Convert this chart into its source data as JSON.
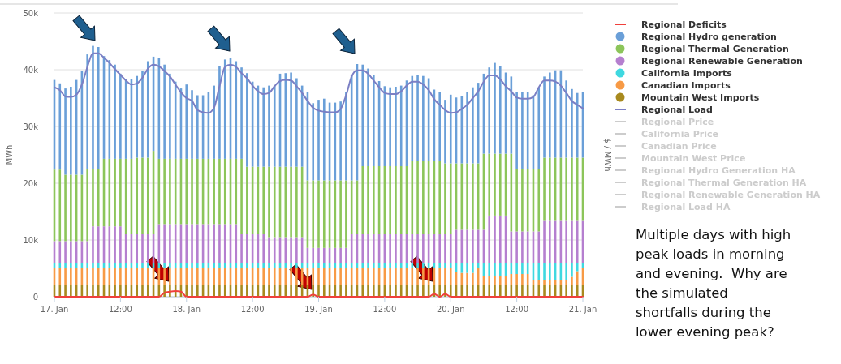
{
  "chart_data": {
    "type": "bar",
    "stacked": true,
    "ylabel": "MWh",
    "y2label": "$ / MWh",
    "grid": "y",
    "legend": "right",
    "xlim": [
      "--01-17T00:00",
      "--01-21T00:00"
    ],
    "xticks": [
      {
        "value": "--01-17T00:00",
        "label": "17. Jan"
      },
      {
        "value": "--01-17T12:00",
        "label": "12:00"
      },
      {
        "value": "--01-18T00:00",
        "label": "18. Jan"
      },
      {
        "value": "--01-18T12:00",
        "label": "12:00"
      },
      {
        "value": "--01-19T00:00",
        "label": "19. Jan"
      },
      {
        "value": "--01-19T12:00",
        "label": "12:00"
      },
      {
        "value": "--01-20T00:00",
        "label": "20. Jan"
      },
      {
        "value": "--01-20T12:00",
        "label": "12:00"
      },
      {
        "value": "--01-21T00:00",
        "label": "21. Jan"
      }
    ],
    "ylim": [
      0,
      50000
    ],
    "yticks": [
      0,
      {
        "value": 10000,
        "label": "10k"
      },
      {
        "value": 20000,
        "label": "20k"
      },
      {
        "value": 30000,
        "label": "30k"
      },
      {
        "value": 40000,
        "label": "40k"
      },
      {
        "value": 50000,
        "label": "50k"
      }
    ],
    "x": [
      "--01-17T00:00",
      "--01-17T01:00",
      "--01-17T02:00",
      "--01-17T03:00",
      "--01-17T04:00",
      "--01-17T05:00",
      "--01-17T06:00",
      "--01-17T07:00",
      "--01-17T08:00",
      "--01-17T09:00",
      "--01-17T10:00",
      "--01-17T11:00",
      "--01-17T12:00",
      "--01-17T13:00",
      "--01-17T14:00",
      "--01-17T15:00",
      "--01-17T16:00",
      "--01-17T17:00",
      "--01-17T18:00",
      "--01-17T19:00",
      "--01-17T20:00",
      "--01-17T21:00",
      "--01-17T22:00",
      "--01-17T23:00",
      "--01-18T00:00",
      "--01-18T01:00",
      "--01-18T02:00",
      "--01-18T03:00",
      "--01-18T04:00",
      "--01-18T05:00",
      "--01-18T06:00",
      "--01-18T07:00",
      "--01-18T08:00",
      "--01-18T09:00",
      "--01-18T10:00",
      "--01-18T11:00",
      "--01-18T12:00",
      "--01-18T13:00",
      "--01-18T14:00",
      "--01-18T15:00",
      "--01-18T16:00",
      "--01-18T17:00",
      "--01-18T18:00",
      "--01-18T19:00",
      "--01-18T20:00",
      "--01-18T21:00",
      "--01-18T22:00",
      "--01-18T23:00",
      "--01-19T00:00",
      "--01-19T01:00",
      "--01-19T02:00",
      "--01-19T03:00",
      "--01-19T04:00",
      "--01-19T05:00",
      "--01-19T06:00",
      "--01-19T07:00",
      "--01-19T08:00",
      "--01-19T09:00",
      "--01-19T10:00",
      "--01-19T11:00",
      "--01-19T12:00",
      "--01-19T13:00",
      "--01-19T14:00",
      "--01-19T15:00",
      "--01-19T16:00",
      "--01-19T17:00",
      "--01-19T18:00",
      "--01-19T19:00",
      "--01-19T20:00",
      "--01-19T21:00",
      "--01-19T22:00",
      "--01-19T23:00",
      "--01-20T00:00",
      "--01-20T01:00",
      "--01-20T02:00",
      "--01-20T03:00",
      "--01-20T04:00",
      "--01-20T05:00",
      "--01-20T06:00",
      "--01-20T07:00",
      "--01-20T08:00",
      "--01-20T09:00",
      "--01-20T10:00",
      "--01-20T11:00",
      "--01-20T12:00",
      "--01-20T13:00",
      "--01-20T14:00",
      "--01-20T15:00",
      "--01-20T16:00",
      "--01-20T17:00",
      "--01-20T18:00",
      "--01-20T19:00",
      "--01-20T20:00",
      "--01-20T21:00",
      "--01-20T22:00",
      "--01-20T23:00",
      "--01-21T00:00"
    ],
    "series": [
      {
        "name": "Regional Deficits",
        "type": "line",
        "color": "#f0403c",
        "values": [
          0,
          0,
          0,
          0,
          0,
          0,
          0,
          0,
          0,
          0,
          0,
          0,
          0,
          0,
          0,
          0,
          0,
          0,
          0,
          0,
          700,
          900,
          1000,
          900,
          0,
          0,
          0,
          0,
          0,
          0,
          0,
          0,
          0,
          0,
          0,
          0,
          0,
          0,
          0,
          0,
          0,
          0,
          0,
          0,
          0,
          0,
          0,
          400,
          0,
          0,
          0,
          0,
          0,
          0,
          0,
          0,
          0,
          0,
          0,
          0,
          0,
          0,
          0,
          0,
          0,
          0,
          0,
          0,
          0,
          500,
          0,
          500,
          0,
          0,
          0,
          0,
          0,
          0,
          0,
          0,
          0,
          0,
          0,
          0,
          0,
          0,
          0,
          0,
          0,
          0,
          0,
          0,
          0,
          0,
          0,
          0,
          0
        ]
      },
      {
        "name": "Mountain West Imports",
        "color": "#a88a1e",
        "values": [
          2000,
          2000,
          2000,
          2000,
          2000,
          2000,
          2000,
          2000,
          2000,
          2000,
          2000,
          2000,
          2000,
          2000,
          2000,
          2000,
          2000,
          2000,
          2000,
          2000,
          2000,
          2000,
          2000,
          2000,
          2000,
          2000,
          2000,
          2000,
          2000,
          2000,
          2000,
          2000,
          2000,
          2000,
          2000,
          2000,
          2000,
          2000,
          2000,
          2000,
          2000,
          2000,
          2000,
          2000,
          2000,
          2000,
          2000,
          2000,
          2000,
          2000,
          2000,
          2000,
          2000,
          2000,
          2000,
          2000,
          2000,
          2000,
          2000,
          2000,
          2000,
          2000,
          2000,
          2000,
          2000,
          2000,
          2000,
          2000,
          2000,
          2000,
          2000,
          2000,
          2000,
          2000,
          2000,
          2000,
          2000,
          2000,
          2000,
          2000,
          2000,
          2000,
          2000,
          2000,
          2000,
          2000,
          2000,
          2000,
          2000,
          2000,
          2000,
          2000,
          2000,
          2000,
          2000,
          2000,
          2000
        ]
      },
      {
        "name": "Canadian Imports",
        "color": "#f79a45",
        "values": [
          3000,
          3000,
          3000,
          3000,
          3000,
          3000,
          3000,
          3000,
          3000,
          3000,
          3000,
          3000,
          3000,
          3000,
          3000,
          3000,
          3000,
          3000,
          3000,
          3000,
          3000,
          3000,
          3000,
          3000,
          3000,
          3000,
          3000,
          3000,
          3000,
          3000,
          3000,
          3000,
          3000,
          3000,
          3000,
          3000,
          3000,
          3000,
          3000,
          3000,
          3000,
          3000,
          3000,
          3000,
          3000,
          3000,
          3000,
          3000,
          3000,
          3000,
          3000,
          3000,
          3000,
          3000,
          3000,
          3000,
          3000,
          3000,
          3000,
          3000,
          3000,
          3000,
          3000,
          3000,
          3000,
          3000,
          3000,
          3000,
          3000,
          3000,
          3000,
          3000,
          3000,
          2300,
          2200,
          2200,
          2200,
          3000,
          1700,
          1700,
          1700,
          1700,
          1700,
          2000,
          2000,
          2000,
          2000,
          900,
          900,
          900,
          900,
          900,
          1000,
          1000,
          1500,
          2500,
          3000
        ]
      },
      {
        "name": "California Imports",
        "color": "#3fd8e0",
        "values": [
          1000,
          1000,
          1000,
          1000,
          1000,
          1000,
          1000,
          1000,
          1000,
          1000,
          1000,
          1000,
          1000,
          1000,
          1000,
          1000,
          1000,
          1000,
          1000,
          1000,
          1000,
          1000,
          1000,
          1000,
          1000,
          1000,
          1000,
          1000,
          1000,
          1000,
          1000,
          1000,
          1000,
          1000,
          1000,
          1000,
          1000,
          1000,
          1000,
          1000,
          1000,
          1000,
          1000,
          1000,
          1000,
          1000,
          1000,
          1000,
          1000,
          1000,
          1000,
          1000,
          1000,
          1000,
          1000,
          1000,
          1000,
          1000,
          1000,
          1000,
          1000,
          1000,
          1000,
          1000,
          1000,
          1000,
          1000,
          1000,
          1000,
          1000,
          1000,
          1000,
          1000,
          1700,
          1800,
          1800,
          1800,
          1000,
          2300,
          2300,
          2300,
          2300,
          2300,
          2000,
          2000,
          2000,
          2000,
          3100,
          3100,
          3100,
          3100,
          3100,
          3000,
          3000,
          2500,
          1500,
          1000
        ]
      },
      {
        "name": "Regional Renewable Generation",
        "color": "#b57fcf",
        "values": [
          3800,
          3800,
          3800,
          3800,
          3800,
          3800,
          3800,
          6400,
          6400,
          6400,
          6400,
          6400,
          6400,
          5000,
          5000,
          5000,
          5000,
          5000,
          5000,
          6800,
          6800,
          6800,
          6800,
          6800,
          6800,
          6800,
          6800,
          6800,
          6800,
          6800,
          6800,
          6800,
          6800,
          6800,
          5000,
          5000,
          5000,
          5000,
          5000,
          4500,
          4500,
          4500,
          4500,
          4500,
          4500,
          4500,
          2600,
          2600,
          2600,
          2600,
          2600,
          2600,
          2600,
          2600,
          5000,
          5000,
          5000,
          5000,
          5000,
          5000,
          5000,
          5000,
          5000,
          5000,
          5000,
          5000,
          5000,
          5000,
          5000,
          5000,
          5000,
          5000,
          5000,
          5800,
          5800,
          5800,
          5800,
          5800,
          5800,
          8300,
          8300,
          8300,
          8300,
          5500,
          5500,
          5500,
          5500,
          5500,
          5500,
          7500,
          7500,
          7500,
          7500,
          7500,
          7500,
          7500,
          7500
        ]
      },
      {
        "name": "Regional Thermal Generation",
        "color": "#8cc55a",
        "values": [
          12600,
          12600,
          11700,
          11700,
          11700,
          11700,
          12700,
          10100,
          10100,
          11900,
          11900,
          11900,
          11900,
          13300,
          13300,
          13500,
          13500,
          13500,
          14700,
          11500,
          11500,
          11500,
          11500,
          11500,
          11500,
          11500,
          11500,
          11500,
          11500,
          11500,
          11500,
          11500,
          11500,
          11500,
          13300,
          11900,
          11900,
          11900,
          11900,
          12400,
          12400,
          12400,
          12400,
          12400,
          12400,
          12400,
          11900,
          11900,
          11900,
          11900,
          11900,
          11900,
          11900,
          11900,
          9500,
          9500,
          12000,
          12000,
          12000,
          12000,
          12000,
          12000,
          12000,
          12000,
          12000,
          13000,
          13000,
          13000,
          13000,
          13000,
          13000,
          12500,
          12500,
          11700,
          11700,
          11700,
          11700,
          11700,
          13400,
          10900,
          10900,
          10900,
          10900,
          13700,
          11000,
          11000,
          11000,
          11000,
          11000,
          11000,
          11000,
          11000,
          11000,
          11000,
          11000,
          11000,
          11000
        ]
      },
      {
        "name": "Regional Hydro generation",
        "color": "#6a9fd8",
        "values": [
          15800,
          15200,
          15200,
          15500,
          16700,
          18300,
          20200,
          21700,
          21500,
          18100,
          17400,
          16600,
          15000,
          14000,
          14000,
          14400,
          15300,
          17000,
          16600,
          17800,
          16600,
          15000,
          13600,
          12400,
          13100,
          12100,
          11200,
          11200,
          11700,
          12900,
          16300,
          17500,
          17800,
          17200,
          16100,
          16500,
          15000,
          14300,
          14000,
          14300,
          14300,
          16400,
          16500,
          16600,
          15600,
          14300,
          15500,
          13600,
          14200,
          14400,
          13700,
          13700,
          13900,
          15500,
          18600,
          20500,
          17900,
          17200,
          16100,
          15000,
          14100,
          13900,
          14000,
          14200,
          15100,
          14900,
          15100,
          14900,
          14500,
          12500,
          12000,
          11200,
          12100,
          11600,
          11800,
          12500,
          13400,
          14200,
          14100,
          15200,
          16000,
          15500,
          14300,
          13600,
          13500,
          13500,
          13500,
          13000,
          14400,
          14300,
          15000,
          15400,
          15400,
          13600,
          12100,
          11400,
          11600
        ]
      },
      {
        "name": "Regional Load",
        "type": "line",
        "color": "#7b7fc4",
        "values": [
          36900,
          36400,
          35300,
          35200,
          35600,
          37400,
          40500,
          42900,
          42900,
          42100,
          41200,
          40100,
          39100,
          38100,
          37400,
          37600,
          38600,
          40200,
          40900,
          40600,
          39800,
          38800,
          37400,
          36000,
          35000,
          34500,
          32900,
          32500,
          32400,
          33300,
          37100,
          40500,
          40900,
          40500,
          39400,
          38500,
          37200,
          36200,
          35700,
          35900,
          37100,
          38000,
          38200,
          38100,
          37100,
          35900,
          34500,
          33300,
          32800,
          32600,
          32500,
          32500,
          33100,
          35500,
          38800,
          39900,
          39900,
          39300,
          38100,
          36900,
          35900,
          35700,
          35700,
          36200,
          37200,
          37900,
          37900,
          37400,
          36400,
          34800,
          33800,
          32900,
          32400,
          32500,
          33100,
          33800,
          35000,
          36200,
          37900,
          39000,
          39000,
          38300,
          37100,
          36200,
          35100,
          34900,
          34900,
          35200,
          36900,
          38100,
          38100,
          37900,
          37200,
          35900,
          34500,
          33800,
          33200
        ]
      },
      {
        "name": "Regional Price",
        "type": "line",
        "color": "#cccccc",
        "values": [
          null,
          null,
          null,
          null,
          null,
          null,
          null,
          null,
          null,
          null,
          null,
          null,
          null,
          null,
          null,
          null,
          null,
          null,
          null,
          null,
          null,
          null,
          null,
          null,
          null,
          null,
          null,
          null,
          null,
          null,
          null,
          null,
          null,
          null,
          null,
          null,
          null,
          null,
          null,
          null,
          null,
          null,
          null,
          null,
          null,
          null,
          null,
          null,
          null,
          null,
          null,
          null,
          null,
          null,
          null,
          null,
          null,
          null,
          null,
          null,
          null,
          null,
          null,
          null,
          null,
          null,
          null,
          null,
          null,
          null,
          null,
          null,
          null,
          null,
          null,
          null,
          null,
          null,
          null,
          null,
          null,
          null,
          null,
          null,
          null,
          null,
          null,
          null,
          null,
          null,
          null,
          null,
          null,
          null,
          null,
          null,
          null
        ]
      },
      {
        "name": "California Price",
        "type": "line",
        "color": "#cccccc",
        "values": [
          null,
          null,
          null,
          null,
          null,
          null,
          null,
          null,
          null,
          null,
          null,
          null,
          null,
          null,
          null,
          null,
          null,
          null,
          null,
          null,
          null,
          null,
          null,
          null,
          null,
          null,
          null,
          null,
          null,
          null,
          null,
          null,
          null,
          null,
          null,
          null,
          null,
          null,
          null,
          null,
          null,
          null,
          null,
          null,
          null,
          null,
          null,
          null,
          null,
          null,
          null,
          null,
          null,
          null,
          null,
          null,
          null,
          null,
          null,
          null,
          null,
          null,
          null,
          null,
          null,
          null,
          null,
          null,
          null,
          null,
          null,
          null,
          null,
          null,
          null,
          null,
          null,
          null,
          null,
          null,
          null,
          null,
          null,
          null,
          null,
          null,
          null,
          null,
          null,
          null,
          null,
          null,
          null,
          null,
          null,
          null,
          null
        ]
      },
      {
        "name": "Canadian Price",
        "type": "line",
        "color": "#cccccc",
        "values": [
          null,
          null,
          null,
          null,
          null,
          null,
          null,
          null,
          null,
          null,
          null,
          null,
          null,
          null,
          null,
          null,
          null,
          null,
          null,
          null,
          null,
          null,
          null,
          null,
          null,
          null,
          null,
          null,
          null,
          null,
          null,
          null,
          null,
          null,
          null,
          null,
          null,
          null,
          null,
          null,
          null,
          null,
          null,
          null,
          null,
          null,
          null,
          null,
          null,
          null,
          null,
          null,
          null,
          null,
          null,
          null,
          null,
          null,
          null,
          null,
          null,
          null,
          null,
          null,
          null,
          null,
          null,
          null,
          null,
          null,
          null,
          null,
          null,
          null,
          null,
          null,
          null,
          null,
          null,
          null,
          null,
          null,
          null,
          null,
          null,
          null,
          null,
          null,
          null,
          null,
          null,
          null,
          null,
          null,
          null,
          null,
          null
        ]
      },
      {
        "name": "Mountain West Price",
        "type": "line",
        "color": "#cccccc",
        "values": [
          null,
          null,
          null,
          null,
          null,
          null,
          null,
          null,
          null,
          null,
          null,
          null,
          null,
          null,
          null,
          null,
          null,
          null,
          null,
          null,
          null,
          null,
          null,
          null,
          null,
          null,
          null,
          null,
          null,
          null,
          null,
          null,
          null,
          null,
          null,
          null,
          null,
          null,
          null,
          null,
          null,
          null,
          null,
          null,
          null,
          null,
          null,
          null,
          null,
          null,
          null,
          null,
          null,
          null,
          null,
          null,
          null,
          null,
          null,
          null,
          null,
          null,
          null,
          null,
          null,
          null,
          null,
          null,
          null,
          null,
          null,
          null,
          null,
          null,
          null,
          null,
          null,
          null,
          null,
          null,
          null,
          null,
          null,
          null,
          null,
          null,
          null,
          null,
          null,
          null,
          null,
          null,
          null,
          null,
          null,
          null,
          null
        ]
      },
      {
        "name": "Regional Hydro Generation HA",
        "type": "line",
        "color": "#cccccc",
        "values": [
          null,
          null,
          null,
          null,
          null,
          null,
          null,
          null,
          null,
          null,
          null,
          null,
          null,
          null,
          null,
          null,
          null,
          null,
          null,
          null,
          null,
          null,
          null,
          null,
          null,
          null,
          null,
          null,
          null,
          null,
          null,
          null,
          null,
          null,
          null,
          null,
          null,
          null,
          null,
          null,
          null,
          null,
          null,
          null,
          null,
          null,
          null,
          null,
          null,
          null,
          null,
          null,
          null,
          null,
          null,
          null,
          null,
          null,
          null,
          null,
          null,
          null,
          null,
          null,
          null,
          null,
          null,
          null,
          null,
          null,
          null,
          null,
          null,
          null,
          null,
          null,
          null,
          null,
          null,
          null,
          null,
          null,
          null,
          null,
          null,
          null,
          null,
          null,
          null,
          null,
          null,
          null,
          null,
          null,
          null,
          null,
          null
        ]
      },
      {
        "name": "Regional Thermal Generation HA",
        "type": "line",
        "color": "#cccccc",
        "values": [
          null,
          null,
          null,
          null,
          null,
          null,
          null,
          null,
          null,
          null,
          null,
          null,
          null,
          null,
          null,
          null,
          null,
          null,
          null,
          null,
          null,
          null,
          null,
          null,
          null,
          null,
          null,
          null,
          null,
          null,
          null,
          null,
          null,
          null,
          null,
          null,
          null,
          null,
          null,
          null,
          null,
          null,
          null,
          null,
          null,
          null,
          null,
          null,
          null,
          null,
          null,
          null,
          null,
          null,
          null,
          null,
          null,
          null,
          null,
          null,
          null,
          null,
          null,
          null,
          null,
          null,
          null,
          null,
          null,
          null,
          null,
          null,
          null,
          null,
          null,
          null,
          null,
          null,
          null,
          null,
          null,
          null,
          null,
          null,
          null,
          null,
          null,
          null,
          null,
          null,
          null,
          null,
          null,
          null,
          null,
          null,
          null
        ]
      },
      {
        "name": "Regional Renewable Generation HA",
        "type": "line",
        "color": "#cccccc",
        "values": [
          null,
          null,
          null,
          null,
          null,
          null,
          null,
          null,
          null,
          null,
          null,
          null,
          null,
          null,
          null,
          null,
          null,
          null,
          null,
          null,
          null,
          null,
          null,
          null,
          null,
          null,
          null,
          null,
          null,
          null,
          null,
          null,
          null,
          null,
          null,
          null,
          null,
          null,
          null,
          null,
          null,
          null,
          null,
          null,
          null,
          null,
          null,
          null,
          null,
          null,
          null,
          null,
          null,
          null,
          null,
          null,
          null,
          null,
          null,
          null,
          null,
          null,
          null,
          null,
          null,
          null,
          null,
          null,
          null,
          null,
          null,
          null,
          null,
          null,
          null,
          null,
          null,
          null,
          null,
          null,
          null,
          null,
          null,
          null,
          null,
          null,
          null,
          null,
          null,
          null,
          null,
          null,
          null,
          null,
          null,
          null,
          null
        ]
      },
      {
        "name": "Regional Load HA",
        "type": "line",
        "color": "#cccccc",
        "values": [
          null,
          null,
          null,
          null,
          null,
          null,
          null,
          null,
          null,
          null,
          null,
          null,
          null,
          null,
          null,
          null,
          null,
          null,
          null,
          null,
          null,
          null,
          null,
          null,
          null,
          null,
          null,
          null,
          null,
          null,
          null,
          null,
          null,
          null,
          null,
          null,
          null,
          null,
          null,
          null,
          null,
          null,
          null,
          null,
          null,
          null,
          null,
          null,
          null,
          null,
          null,
          null,
          null,
          null,
          null,
          null,
          null,
          null,
          null,
          null,
          null,
          null,
          null,
          null,
          null,
          null,
          null,
          null,
          null,
          null,
          null,
          null,
          null,
          null,
          null,
          null,
          null,
          null,
          null,
          null,
          null,
          null,
          null,
          null,
          null,
          null,
          null,
          null,
          null,
          null,
          null,
          null,
          null,
          null,
          null,
          null,
          null
        ]
      }
    ],
    "annotations": [
      "Multiple days with high peak loads in morning and evening.  Why are the simulated shortfalls during the lower evening peak?"
    ]
  }
}
